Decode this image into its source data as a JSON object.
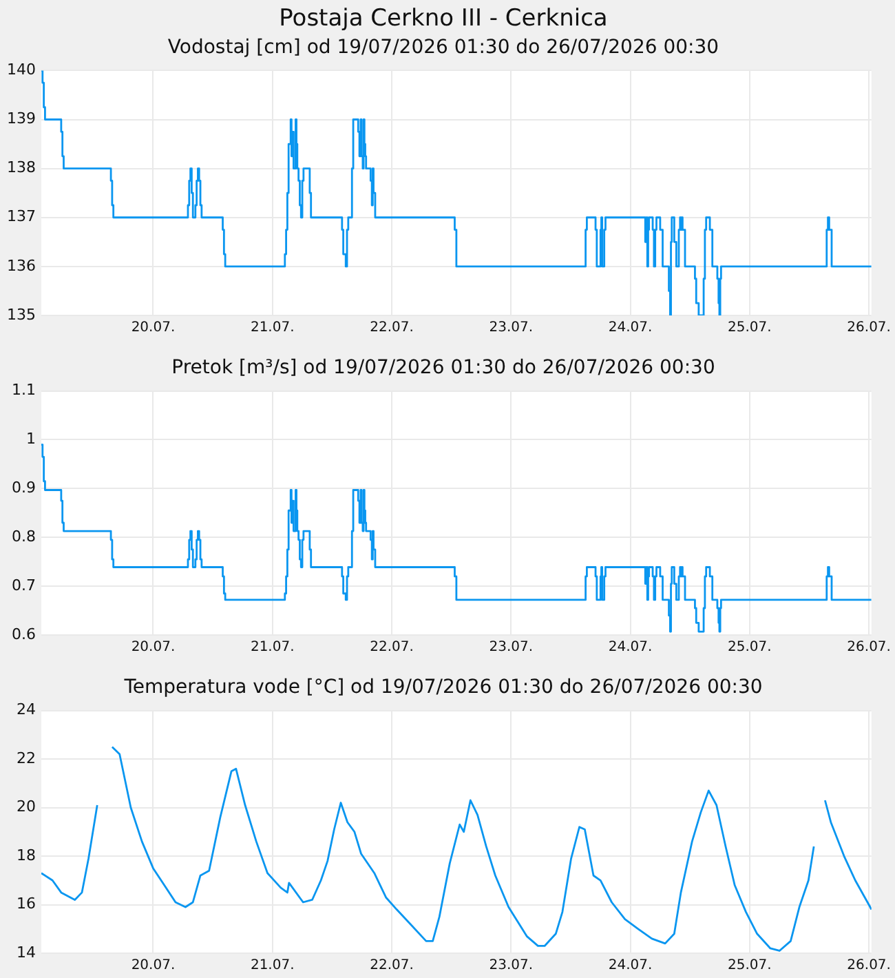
{
  "chart_data": [
    {
      "type": "step",
      "title": "Postaja Cerkno III - Cerknica",
      "subtitle": "Vodostaj [cm] od 19/07/2026 01:30 do 26/07/2026 00:30",
      "color": "#0a96f0",
      "grid": true,
      "xlim": [
        "2026-07-19T01:30",
        "2026-07-26T00:30"
      ],
      "xticks": [
        {
          "value": "2026-07-20",
          "label": "20.07."
        },
        {
          "value": "2026-07-21",
          "label": "21.07."
        },
        {
          "value": "2026-07-22",
          "label": "22.07."
        },
        {
          "value": "2026-07-23",
          "label": "23.07."
        },
        {
          "value": "2026-07-24",
          "label": "24.07."
        },
        {
          "value": "2026-07-25",
          "label": "25.07."
        },
        {
          "value": "2026-07-26",
          "label": "26.07."
        }
      ],
      "ylim": [
        135,
        140
      ],
      "yticks": [
        135,
        136,
        137,
        138,
        139,
        140
      ],
      "x": [
        "2026-07-19T01:30",
        "2026-07-19T01:45",
        "2026-07-19T02:00",
        "2026-07-19T02:15",
        "2026-07-19T05:30",
        "2026-07-19T05:45",
        "2026-07-19T06:00",
        "2026-07-19T15:30",
        "2026-07-19T15:45",
        "2026-07-19T16:00",
        "2026-07-20T07:00",
        "2026-07-20T07:15",
        "2026-07-20T07:30",
        "2026-07-20T07:45",
        "2026-07-20T08:00",
        "2026-07-20T08:30",
        "2026-07-20T08:45",
        "2026-07-20T09:00",
        "2026-07-20T09:15",
        "2026-07-20T09:30",
        "2026-07-20T09:45",
        "2026-07-20T14:00",
        "2026-07-20T14:15",
        "2026-07-20T14:30",
        "2026-07-21T02:30",
        "2026-07-21T02:45",
        "2026-07-21T03:00",
        "2026-07-21T03:15",
        "2026-07-21T03:40",
        "2026-07-21T03:50",
        "2026-07-21T04:00",
        "2026-07-21T04:15",
        "2026-07-21T04:40",
        "2026-07-21T04:50",
        "2026-07-21T05:00",
        "2026-07-21T05:15",
        "2026-07-21T05:30",
        "2026-07-21T05:45",
        "2026-07-21T06:00",
        "2026-07-21T06:15",
        "2026-07-21T07:30",
        "2026-07-21T07:45",
        "2026-07-21T14:00",
        "2026-07-21T14:15",
        "2026-07-21T14:45",
        "2026-07-21T15:00",
        "2026-07-21T15:15",
        "2026-07-21T16:00",
        "2026-07-21T16:15",
        "2026-07-21T17:15",
        "2026-07-21T17:30",
        "2026-07-21T17:45",
        "2026-07-21T17:55",
        "2026-07-21T18:10",
        "2026-07-21T18:20",
        "2026-07-21T18:30",
        "2026-07-21T18:40",
        "2026-07-21T18:50",
        "2026-07-21T19:45",
        "2026-07-21T20:00",
        "2026-07-21T20:10",
        "2026-07-21T20:20",
        "2026-07-21T20:40",
        "2026-07-22T12:40",
        "2026-07-22T13:00",
        "2026-07-23T15:00",
        "2026-07-23T15:15",
        "2026-07-23T17:00",
        "2026-07-23T17:15",
        "2026-07-23T18:00",
        "2026-07-23T18:10",
        "2026-07-23T18:20",
        "2026-07-23T18:45",
        "2026-07-23T19:00",
        "2026-07-24T03:00",
        "2026-07-24T03:15",
        "2026-07-24T03:25",
        "2026-07-24T03:35",
        "2026-07-24T03:45",
        "2026-07-24T04:30",
        "2026-07-24T04:45",
        "2026-07-24T05:00",
        "2026-07-24T05:15",
        "2026-07-24T06:00",
        "2026-07-24T06:30",
        "2026-07-24T07:45",
        "2026-07-24T08:00",
        "2026-07-24T08:10",
        "2026-07-24T08:20",
        "2026-07-24T08:50",
        "2026-07-24T09:15",
        "2026-07-24T09:45",
        "2026-07-24T10:00",
        "2026-07-24T10:10",
        "2026-07-24T10:20",
        "2026-07-24T10:30",
        "2026-07-24T11:00",
        "2026-07-24T13:00",
        "2026-07-24T13:15",
        "2026-07-24T13:45",
        "2026-07-24T14:45",
        "2026-07-24T15:00",
        "2026-07-24T15:15",
        "2026-07-24T16:00",
        "2026-07-24T16:30",
        "2026-07-24T17:30",
        "2026-07-24T17:45",
        "2026-07-24T17:55",
        "2026-07-24T18:05",
        "2026-07-24T18:15",
        "2026-07-25T15:30",
        "2026-07-25T15:45",
        "2026-07-25T16:00",
        "2026-07-25T16:30",
        "2026-07-26T00:30"
      ],
      "values": [
        140,
        139.75,
        139.25,
        139,
        138.75,
        138.25,
        138,
        137.75,
        137.25,
        137,
        137.25,
        137.75,
        138,
        137.5,
        137,
        137.25,
        137.75,
        138,
        137.75,
        137.25,
        137,
        136.75,
        136.25,
        136,
        136.25,
        136.75,
        137.5,
        138.5,
        139,
        138.25,
        138.75,
        138,
        139,
        138.5,
        138,
        137.75,
        137.25,
        137,
        137.75,
        138,
        137.5,
        137,
        136.75,
        136.25,
        136,
        136.75,
        137,
        138,
        139,
        138.75,
        138.25,
        139,
        138.25,
        138,
        139,
        138.5,
        138.25,
        138,
        137.75,
        137.25,
        138,
        137.5,
        137,
        136.75,
        136,
        136.75,
        137,
        136.75,
        136,
        136.75,
        137,
        136,
        136.75,
        137,
        136.5,
        137,
        136,
        136.75,
        137,
        136.75,
        136,
        136.75,
        137,
        136.75,
        136,
        135.5,
        135,
        136.5,
        137,
        136.5,
        136,
        136.75,
        137,
        136.75,
        137,
        136.75,
        136,
        135.75,
        135.25,
        135,
        135.75,
        136.75,
        137,
        136.75,
        136,
        135.75,
        135.25,
        135,
        135.75,
        136,
        136.75,
        137,
        136.75,
        136,
        136
      ]
    },
    {
      "type": "step",
      "title": "Pretok [m³/s] od 19/07/2026 01:30 do 26/07/2026 00:30",
      "color": "#0a96f0",
      "grid": true,
      "xlim": [
        "2026-07-19T01:30",
        "2026-07-26T00:30"
      ],
      "xticks": [
        {
          "value": "2026-07-20",
          "label": "20.07."
        },
        {
          "value": "2026-07-21",
          "label": "21.07."
        },
        {
          "value": "2026-07-22",
          "label": "22.07."
        },
        {
          "value": "2026-07-23",
          "label": "23.07."
        },
        {
          "value": "2026-07-24",
          "label": "24.07."
        },
        {
          "value": "2026-07-25",
          "label": "25.07."
        },
        {
          "value": "2026-07-26",
          "label": "26.07."
        }
      ],
      "ylim": [
        0.6,
        1.1
      ],
      "yticks": [
        0.6,
        0.7,
        0.8,
        0.9,
        1,
        1.1
      ],
      "x": [
        "2026-07-19T01:30",
        "2026-07-19T01:45",
        "2026-07-19T02:00",
        "2026-07-19T02:15",
        "2026-07-19T05:30",
        "2026-07-19T05:45",
        "2026-07-19T06:00",
        "2026-07-19T15:30",
        "2026-07-19T15:45",
        "2026-07-19T16:00",
        "2026-07-20T07:00",
        "2026-07-20T07:15",
        "2026-07-20T07:30",
        "2026-07-20T07:45",
        "2026-07-20T08:00",
        "2026-07-20T08:30",
        "2026-07-20T08:45",
        "2026-07-20T09:00",
        "2026-07-20T09:15",
        "2026-07-20T09:30",
        "2026-07-20T09:45",
        "2026-07-20T14:00",
        "2026-07-20T14:15",
        "2026-07-20T14:30",
        "2026-07-21T02:30",
        "2026-07-21T02:45",
        "2026-07-21T03:00",
        "2026-07-21T03:15",
        "2026-07-21T03:40",
        "2026-07-21T03:50",
        "2026-07-21T04:00",
        "2026-07-21T04:15",
        "2026-07-21T04:40",
        "2026-07-21T04:50",
        "2026-07-21T05:00",
        "2026-07-21T05:15",
        "2026-07-21T05:30",
        "2026-07-21T05:45",
        "2026-07-21T06:00",
        "2026-07-21T06:15",
        "2026-07-21T07:30",
        "2026-07-21T07:45",
        "2026-07-21T14:00",
        "2026-07-21T14:15",
        "2026-07-21T14:45",
        "2026-07-21T15:00",
        "2026-07-21T15:15",
        "2026-07-21T16:00",
        "2026-07-21T16:15",
        "2026-07-21T17:15",
        "2026-07-21T17:30",
        "2026-07-21T17:45",
        "2026-07-21T17:55",
        "2026-07-21T18:10",
        "2026-07-21T18:20",
        "2026-07-21T18:30",
        "2026-07-21T18:40",
        "2026-07-21T18:50",
        "2026-07-21T19:45",
        "2026-07-21T20:00",
        "2026-07-21T20:10",
        "2026-07-21T20:20",
        "2026-07-21T20:40",
        "2026-07-22T12:40",
        "2026-07-22T13:00",
        "2026-07-23T15:00",
        "2026-07-23T15:15",
        "2026-07-23T17:00",
        "2026-07-23T17:15",
        "2026-07-23T18:00",
        "2026-07-23T18:10",
        "2026-07-23T18:20",
        "2026-07-23T18:45",
        "2026-07-23T19:00",
        "2026-07-24T03:00",
        "2026-07-24T03:15",
        "2026-07-24T03:25",
        "2026-07-24T03:35",
        "2026-07-24T03:45",
        "2026-07-24T04:30",
        "2026-07-24T04:45",
        "2026-07-24T05:00",
        "2026-07-24T05:15",
        "2026-07-24T06:00",
        "2026-07-24T06:30",
        "2026-07-24T07:45",
        "2026-07-24T08:00",
        "2026-07-24T08:10",
        "2026-07-24T08:20",
        "2026-07-24T08:50",
        "2026-07-24T09:15",
        "2026-07-24T09:45",
        "2026-07-24T10:00",
        "2026-07-24T10:10",
        "2026-07-24T10:20",
        "2026-07-24T10:30",
        "2026-07-24T11:00",
        "2026-07-24T13:00",
        "2026-07-24T13:15",
        "2026-07-24T13:45",
        "2026-07-24T14:45",
        "2026-07-24T15:00",
        "2026-07-24T15:15",
        "2026-07-24T16:00",
        "2026-07-24T16:30",
        "2026-07-24T17:30",
        "2026-07-24T17:45",
        "2026-07-24T17:55",
        "2026-07-24T18:05",
        "2026-07-24T18:15",
        "2026-07-25T15:30",
        "2026-07-25T15:45",
        "2026-07-25T16:00",
        "2026-07-25T16:30",
        "2026-07-26T00:30"
      ],
      "values": [
        0.99,
        0.965,
        0.915,
        0.897,
        0.875,
        0.83,
        0.813,
        0.795,
        0.755,
        0.739,
        0.755,
        0.795,
        0.813,
        0.775,
        0.739,
        0.755,
        0.795,
        0.813,
        0.795,
        0.755,
        0.739,
        0.72,
        0.685,
        0.672,
        0.685,
        0.72,
        0.775,
        0.855,
        0.897,
        0.83,
        0.875,
        0.813,
        0.897,
        0.855,
        0.813,
        0.795,
        0.755,
        0.739,
        0.795,
        0.813,
        0.775,
        0.739,
        0.72,
        0.685,
        0.672,
        0.72,
        0.739,
        0.813,
        0.897,
        0.875,
        0.83,
        0.897,
        0.83,
        0.813,
        0.897,
        0.855,
        0.83,
        0.813,
        0.795,
        0.755,
        0.813,
        0.775,
        0.739,
        0.72,
        0.672,
        0.72,
        0.739,
        0.72,
        0.672,
        0.72,
        0.739,
        0.672,
        0.72,
        0.739,
        0.705,
        0.739,
        0.672,
        0.72,
        0.739,
        0.72,
        0.672,
        0.72,
        0.739,
        0.72,
        0.672,
        0.64,
        0.607,
        0.705,
        0.739,
        0.705,
        0.672,
        0.72,
        0.739,
        0.72,
        0.739,
        0.72,
        0.672,
        0.655,
        0.625,
        0.607,
        0.655,
        0.72,
        0.739,
        0.72,
        0.672,
        0.655,
        0.625,
        0.607,
        0.655,
        0.672,
        0.72,
        0.739,
        0.72,
        0.672,
        0.672
      ]
    },
    {
      "type": "line",
      "title": "Temperatura vode [°C] od 19/07/2026 01:30 do 26/07/2026 00:30",
      "color": "#0a96f0",
      "grid": true,
      "xlim": [
        "2026-07-19T01:30",
        "2026-07-26T00:30"
      ],
      "xticks": [
        {
          "value": "2026-07-20",
          "label": "20.07."
        },
        {
          "value": "2026-07-21",
          "label": "21.07."
        },
        {
          "value": "2026-07-22",
          "label": "22.07."
        },
        {
          "value": "2026-07-23",
          "label": "23.07."
        },
        {
          "value": "2026-07-24",
          "label": "24.07."
        },
        {
          "value": "2026-07-25",
          "label": "25.07."
        },
        {
          "value": "2026-07-26",
          "label": "26.07."
        }
      ],
      "ylim": [
        14,
        24
      ],
      "yticks": [
        14,
        16,
        18,
        20,
        22,
        24
      ],
      "x": [
        "2026-07-19T01:30",
        "2026-07-19T03:45",
        "2026-07-19T05:30",
        "2026-07-19T08:15",
        "2026-07-19T09:40",
        "2026-07-19T11:00",
        "2026-07-19T12:45",
        "2026-07-19T14:15",
        "2026-07-19T15:45",
        "2026-07-19T17:15",
        "2026-07-19T19:30",
        "2026-07-19T21:45",
        "2026-07-20T00:00",
        "2026-07-20T02:15",
        "2026-07-20T04:30",
        "2026-07-20T06:30",
        "2026-07-20T08:00",
        "2026-07-20T09:30",
        "2026-07-20T11:15",
        "2026-07-20T13:30",
        "2026-07-20T15:45",
        "2026-07-20T16:40",
        "2026-07-20T18:30",
        "2026-07-20T20:45",
        "2026-07-20T23:00",
        "2026-07-21T01:40",
        "2026-07-21T03:00",
        "2026-07-21T03:20",
        "2026-07-21T06:10",
        "2026-07-21T08:00",
        "2026-07-21T09:45",
        "2026-07-21T11:05",
        "2026-07-21T12:25",
        "2026-07-21T13:45",
        "2026-07-21T15:05",
        "2026-07-21T16:30",
        "2026-07-21T17:50",
        "2026-07-21T20:30",
        "2026-07-21T22:50",
        "2026-07-22T01:00",
        "2026-07-22T03:45",
        "2026-07-22T06:55",
        "2026-07-22T08:15",
        "2026-07-22T09:35",
        "2026-07-22T11:40",
        "2026-07-22T13:40",
        "2026-07-22T14:30",
        "2026-07-22T15:50",
        "2026-07-22T17:15",
        "2026-07-22T19:00",
        "2026-07-22T20:50",
        "2026-07-22T23:30",
        "2026-07-23T03:10",
        "2026-07-23T05:25",
        "2026-07-23T06:45",
        "2026-07-23T09:00",
        "2026-07-23T10:20",
        "2026-07-23T12:05",
        "2026-07-23T13:45",
        "2026-07-23T14:50",
        "2026-07-23T16:35",
        "2026-07-23T18:00",
        "2026-07-23T20:15",
        "2026-07-23T22:55",
        "2026-07-24T01:35",
        "2026-07-24T04:20",
        "2026-07-24T07:00",
        "2026-07-24T08:50",
        "2026-07-24T10:10",
        "2026-07-24T12:25",
        "2026-07-24T14:10",
        "2026-07-24T15:45",
        "2026-07-24T17:20",
        "2026-07-24T19:10",
        "2026-07-24T21:00",
        "2026-07-24T23:15",
        "2026-07-25T01:30",
        "2026-07-25T04:10",
        "2026-07-25T06:00",
        "2026-07-25T08:15",
        "2026-07-25T10:00",
        "2026-07-25T11:50",
        "2026-07-25T12:55",
        "2026-07-25T14:00",
        "2026-07-25T15:10",
        "2026-07-25T16:20",
        "2026-07-25T19:00",
        "2026-07-25T21:15",
        "2026-07-26T00:15",
        "2026-07-26T00:30"
      ],
      "values": [
        17.3,
        17,
        16.5,
        16.2,
        16.5,
        17.9,
        20.1,
        null,
        22.5,
        22.2,
        20,
        18.6,
        17.5,
        16.8,
        16.1,
        15.9,
        16.1,
        17.2,
        17.4,
        19.6,
        21.5,
        21.6,
        20.1,
        18.6,
        17.3,
        16.7,
        16.5,
        16.9,
        16.1,
        16.2,
        17,
        17.8,
        19.1,
        20.2,
        19.4,
        19,
        18.1,
        17.3,
        16.3,
        15.8,
        15.2,
        14.5,
        14.5,
        15.5,
        17.7,
        19.3,
        19,
        20.3,
        19.7,
        18.4,
        17.2,
        15.9,
        14.7,
        14.3,
        14.3,
        14.8,
        15.7,
        17.9,
        19.2,
        19.1,
        17.2,
        17,
        16.1,
        15.4,
        15,
        14.6,
        14.4,
        14.8,
        16.5,
        18.6,
        19.8,
        20.7,
        20.1,
        18.4,
        16.8,
        15.7,
        14.8,
        14.2,
        14.1,
        14.5,
        15.9,
        17,
        18.4,
        null,
        20.3,
        19.4,
        18,
        17,
        15.9,
        15.8
      ]
    }
  ]
}
